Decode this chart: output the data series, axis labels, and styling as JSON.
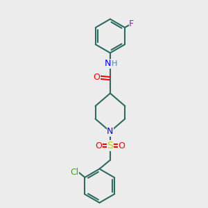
{
  "bg_color": "#ececec",
  "bond_color": "#2d6b5e",
  "bond_width": 1.5,
  "atom_colors": {
    "N": "#0000ff",
    "O": "#ff0000",
    "S": "#cccc00",
    "Cl": "#22bb00",
    "F": "#cc00cc",
    "H": "#4488aa"
  },
  "font_size": 8,
  "fig_width": 3.0,
  "fig_height": 3.0,
  "dpi": 100
}
